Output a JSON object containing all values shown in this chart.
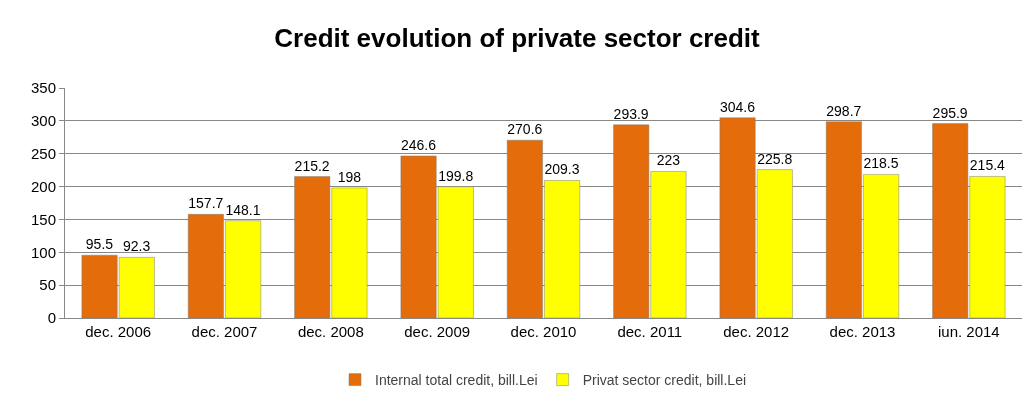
{
  "chart_data": {
    "type": "bar",
    "title": "Credit evolution of private sector credit",
    "categories": [
      "dec. 2006",
      "dec. 2007",
      "dec. 2008",
      "dec. 2009",
      "dec. 2010",
      "dec. 2011",
      "dec. 2012",
      "dec. 2013",
      "iun. 2014"
    ],
    "series": [
      {
        "name": "Internal total credit, bill.Lei",
        "color": "#e46c0a",
        "values": [
          95.5,
          157.7,
          215.2,
          246.6,
          270.6,
          293.9,
          304.6,
          298.7,
          295.9
        ]
      },
      {
        "name": "Privat sector credit, bill.Lei",
        "color": "#ffff00",
        "values": [
          92.3,
          148.1,
          198,
          199.8,
          209.3,
          223,
          225.8,
          218.5,
          215.4
        ]
      }
    ],
    "ylim": [
      0,
      350
    ],
    "yticks": [
      0,
      50,
      100,
      150,
      200,
      250,
      300,
      350
    ],
    "grid": "y",
    "legend": "bottom",
    "data_labels": true
  }
}
